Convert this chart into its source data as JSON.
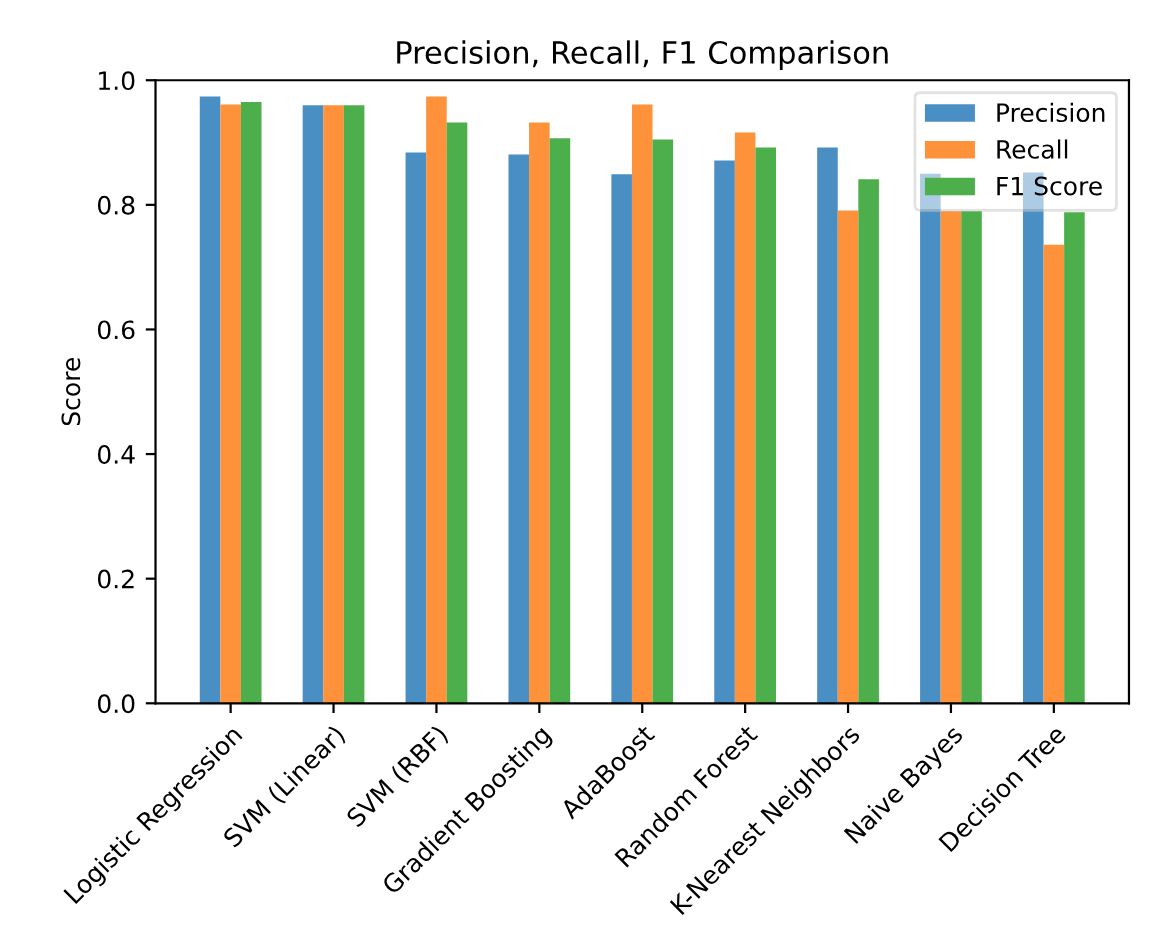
{
  "chart_data": {
    "type": "bar",
    "title": "Precision, Recall, F1 Comparison",
    "ylabel": "Score",
    "categories": [
      "Logistic Regression",
      "SVM (Linear)",
      "SVM (RBF)",
      "Gradient Boosting",
      "AdaBoost",
      "Random Forest",
      "K-Nearest Neighbors",
      "Naive Bayes",
      "Decision Tree"
    ],
    "series": [
      {
        "name": "Precision",
        "color": "#4a8fc4",
        "values": [
          0.974,
          0.96,
          0.884,
          0.881,
          0.849,
          0.871,
          0.892,
          0.85,
          0.852
        ]
      },
      {
        "name": "Recall",
        "color": "#fd923a",
        "values": [
          0.961,
          0.96,
          0.974,
          0.932,
          0.961,
          0.916,
          0.791,
          0.79,
          0.736
        ]
      },
      {
        "name": "F1 Score",
        "color": "#4caf4c",
        "values": [
          0.965,
          0.96,
          0.932,
          0.907,
          0.905,
          0.892,
          0.841,
          0.79,
          0.788
        ]
      }
    ],
    "ylim": [
      0,
      1.0
    ],
    "yticks": [
      {
        "value": 0,
        "label": "0.0"
      },
      {
        "value": 0.2,
        "label": "0.2"
      },
      {
        "value": 0.4,
        "label": "0.4"
      },
      {
        "value": 0.6,
        "label": "0.6"
      },
      {
        "value": 0.8,
        "label": "0.8"
      },
      {
        "value": 1.0,
        "label": "1.0"
      }
    ],
    "legend": "top right",
    "grid": false
  }
}
